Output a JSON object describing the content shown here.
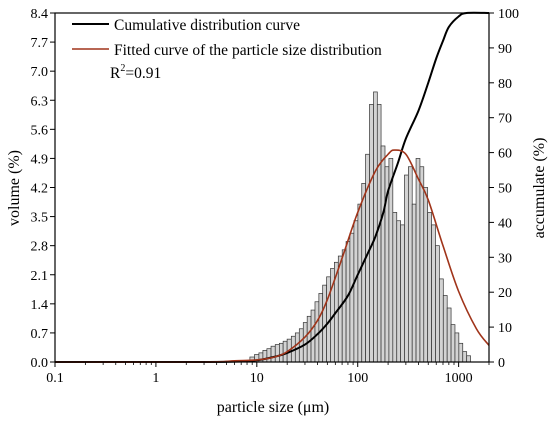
{
  "chart_data": {
    "type": "bar",
    "xlabel": "particle size (μm)",
    "ylabel_left": "volume (%)",
    "ylabel_right": "accumulate (%)",
    "x_scale": "log",
    "xlim": [
      0.1,
      2000
    ],
    "x_ticks": [
      0.1,
      1,
      10,
      100,
      1000
    ],
    "x_tick_labels": [
      "0.1",
      "1",
      "10",
      "100",
      "1000"
    ],
    "ylim_left": [
      0,
      8.4
    ],
    "y_ticks_left": [
      "0.0",
      "0.7",
      "1.4",
      "2.1",
      "2.8",
      "3.5",
      "4.2",
      "4.9",
      "5.6",
      "6.3",
      "7.0",
      "7.7",
      "8.4"
    ],
    "ylim_right": [
      0,
      100
    ],
    "y_ticks_right": [
      "0",
      "10",
      "20",
      "30",
      "40",
      "50",
      "60",
      "70",
      "80",
      "90",
      "100"
    ],
    "grid": false,
    "legend_position": "top-left",
    "legend": [
      {
        "label": "Cumulative distribution curve",
        "color": "#000000"
      },
      {
        "label": "Fitted curve of the particle size distribution",
        "color": "#a0341a"
      }
    ],
    "annotation": {
      "text": "R",
      "sup": "2",
      "suffix": "=0.91"
    },
    "histogram": {
      "color_fill": "#d3d3d3",
      "color_edge": "#333333",
      "x": [
        9.0,
        10.0,
        11.0,
        12.0,
        13.2,
        14.5,
        16.0,
        17.5,
        19.0,
        21.0,
        23.0,
        25.2,
        27.6,
        30.2,
        33.0,
        36.0,
        39.5,
        43.0,
        47.0,
        51.5,
        56.0,
        61.5,
        67.0,
        73.5,
        80.0,
        87.5,
        96.0,
        105.0,
        114.5,
        125.0,
        137.0,
        150.0,
        163.0,
        178.0,
        195.0,
        213.0,
        233.0,
        255.0,
        278.0,
        304.0,
        332.0,
        362.0,
        396.0,
        432.0,
        472.0,
        516.0,
        564.0,
        617.0,
        674.0,
        737.0,
        805.0,
        880.0,
        962.0,
        1050.0,
        1150.0,
        1256.0
      ],
      "values": [
        0.12,
        0.18,
        0.22,
        0.28,
        0.32,
        0.38,
        0.42,
        0.45,
        0.5,
        0.55,
        0.62,
        0.7,
        0.8,
        0.95,
        1.1,
        1.25,
        1.45,
        1.65,
        1.85,
        2.05,
        2.25,
        2.4,
        2.55,
        2.7,
        2.9,
        3.1,
        3.4,
        3.8,
        4.3,
        5.0,
        6.2,
        6.5,
        6.2,
        5.2,
        4.7,
        4.9,
        3.6,
        3.4,
        3.3,
        4.5,
        4.7,
        3.8,
        4.9,
        4.7,
        4.2,
        3.6,
        3.3,
        2.8,
        2.0,
        1.6,
        1.3,
        0.9,
        0.7,
        0.45,
        0.25,
        0.15
      ]
    },
    "series": [
      {
        "name": "Cumulative distribution curve",
        "axis": "right",
        "color": "#000000",
        "x": [
          0.1,
          1,
          3,
          6,
          10,
          15,
          20,
          30,
          40,
          50,
          60,
          80,
          100,
          130,
          150,
          180,
          200,
          250,
          300,
          400,
          500,
          600,
          700,
          800,
          1000,
          1200,
          2000
        ],
        "y": [
          0,
          0,
          0,
          0.1,
          0.5,
          1.5,
          2.6,
          5.0,
          8.0,
          11.0,
          14.0,
          19.0,
          25.0,
          32.0,
          36.0,
          43.0,
          49.0,
          57.0,
          64.0,
          72.0,
          80.0,
          87.0,
          92.0,
          96.0,
          99.0,
          100.0,
          100.0
        ]
      },
      {
        "name": "Fitted curve of the particle size distribution",
        "axis": "left",
        "color": "#a0341a",
        "x": [
          0.1,
          3,
          6,
          10,
          15,
          20,
          30,
          40,
          50,
          70,
          100,
          150,
          200,
          230,
          300,
          400,
          500,
          700,
          1000,
          1500,
          2000
        ],
        "y": [
          0,
          0.0,
          0.03,
          0.05,
          0.12,
          0.25,
          0.6,
          1.0,
          1.5,
          2.5,
          3.6,
          4.6,
          5.0,
          5.1,
          5.0,
          4.4,
          3.9,
          2.8,
          1.7,
          0.8,
          0.4
        ]
      }
    ]
  }
}
